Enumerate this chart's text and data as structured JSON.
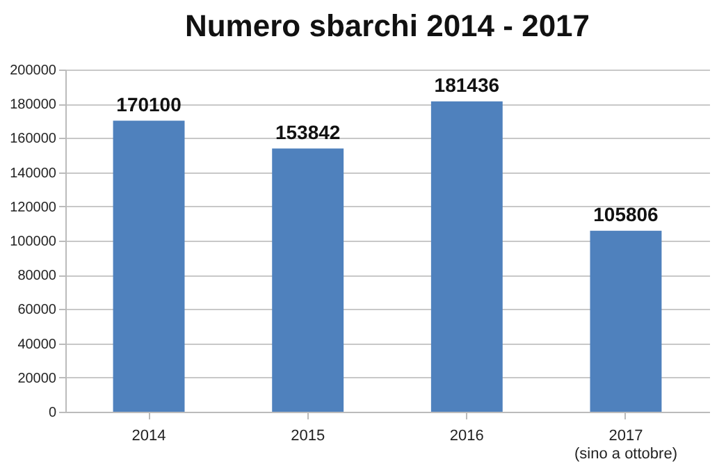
{
  "chart_data": {
    "type": "bar",
    "title": "Numero sbarchi 2014 - 2017",
    "categories": [
      "2014",
      "2015",
      "2016",
      "2017\n(sino a ottobre)"
    ],
    "values": [
      170100,
      153842,
      181436,
      105806
    ],
    "color": "#4f81bd",
    "ylim": [
      0,
      200000
    ],
    "yticks": [
      0,
      20000,
      40000,
      60000,
      80000,
      100000,
      120000,
      140000,
      160000,
      180000,
      200000
    ],
    "grid": "y",
    "data_labels": true
  }
}
